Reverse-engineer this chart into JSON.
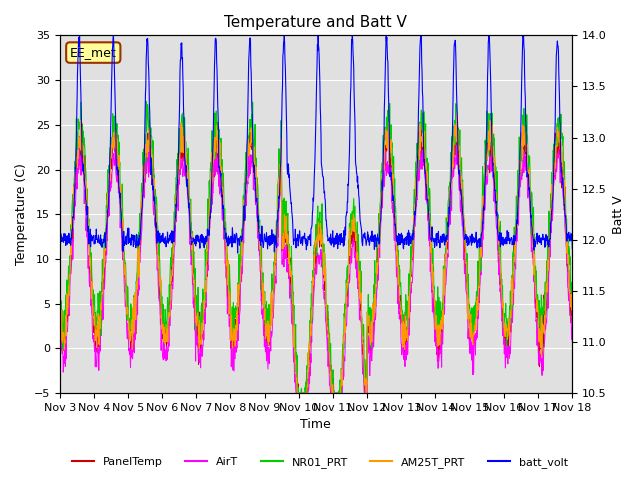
{
  "title": "Temperature and Batt V",
  "xlabel": "Time",
  "ylabel_left": "Temperature (C)",
  "ylabel_right": "Batt V",
  "ylim_left": [
    -5,
    35
  ],
  "ylim_right": [
    10.5,
    14.0
  ],
  "x_tick_labels": [
    "Nov 3",
    "Nov 4",
    "Nov 5",
    "Nov 6",
    "Nov 7",
    "Nov 8",
    "Nov 9",
    "Nov 10",
    "Nov 11",
    "Nov 12",
    "Nov 13",
    "Nov 14",
    "Nov 15",
    "Nov 16",
    "Nov 17",
    "Nov 18"
  ],
  "station_label": "EE_met",
  "bg_color": "#e0e0e0",
  "legend_entries": [
    {
      "label": "PanelTemp",
      "color": "#cc0000"
    },
    {
      "label": "AirT",
      "color": "#ff00ff"
    },
    {
      "label": "NR01_PRT",
      "color": "#00cc00"
    },
    {
      "label": "AM25T_PRT",
      "color": "#ff9900"
    },
    {
      "label": "batt_volt",
      "color": "#0000ff"
    }
  ],
  "n_days": 16,
  "pts_per_day": 96
}
